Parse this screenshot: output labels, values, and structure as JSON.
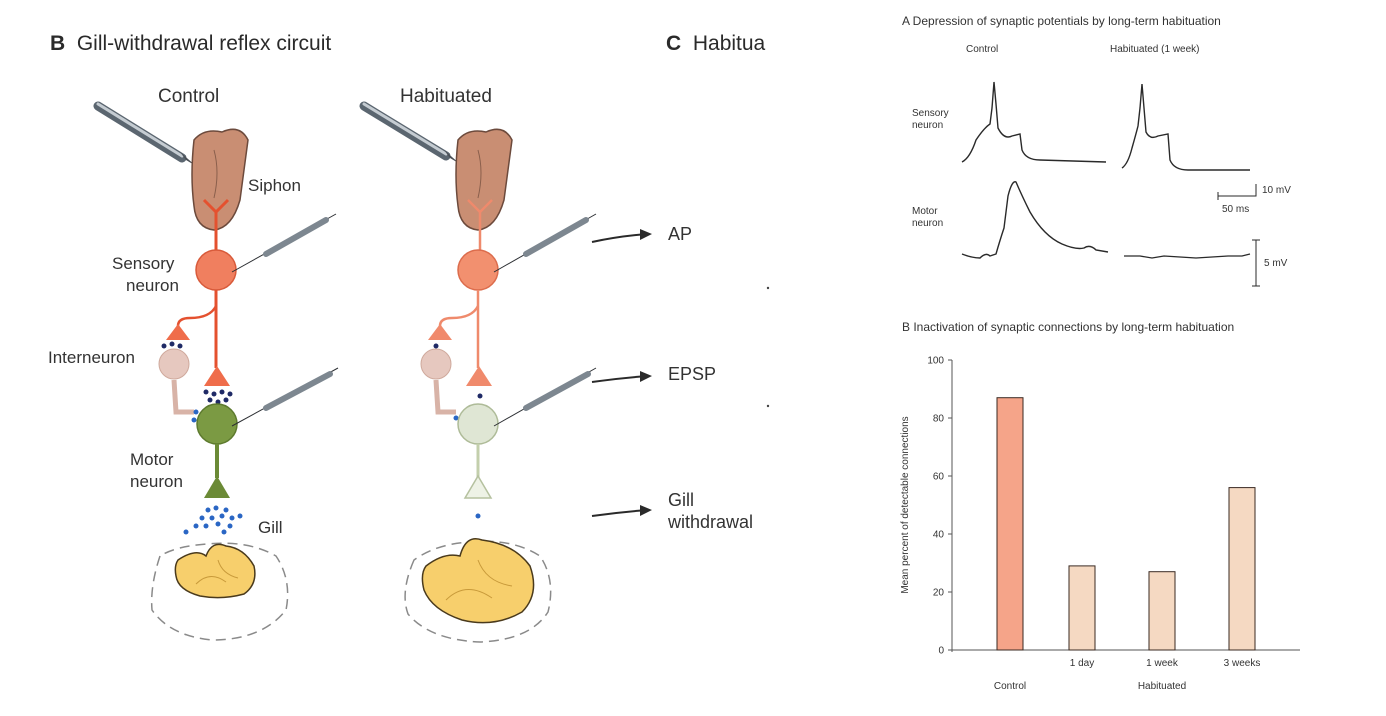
{
  "panel_b": {
    "letter": "B",
    "title": "Gill-withdrawal reflex circuit",
    "control_label": "Control",
    "habituated_label": "Habituated",
    "siphon_label": "Siphon",
    "sensory_label_1": "Sensory",
    "sensory_label_2": "neuron",
    "interneuron_label": "Interneuron",
    "motor_label_1": "Motor",
    "motor_label_2": "neuron",
    "gill_label": "Gill"
  },
  "panel_c": {
    "letter": "C",
    "title": "Habitua",
    "ap_label": "AP",
    "epsp_label": "EPSP",
    "gill_label_1": "Gill",
    "gill_label_2": "withdrawal"
  },
  "panel_a": {
    "title": "A  Depression of synaptic potentials by long-term habituation",
    "control_label": "Control",
    "habituated_label": "Habituated (1 week)",
    "sensory_label_1": "Sensory",
    "sensory_label_2": "neuron",
    "motor_label_1": "Motor",
    "motor_label_2": "neuron",
    "scale_10mv": "10 mV",
    "scale_50ms": "50 ms",
    "scale_5mv": "5 mV"
  },
  "chart_data": {
    "type": "bar",
    "title": "B  Inactivation of synaptic connections by long-term habituation",
    "ylabel": "Mean percent of detectable connections",
    "ylim": [
      0,
      100
    ],
    "yticks": [
      0,
      20,
      40,
      60,
      80,
      100
    ],
    "categories": [
      "Control",
      "1 day",
      "1 week",
      "3 weeks"
    ],
    "values": [
      87,
      29,
      27,
      56
    ],
    "group_label": "Habituated",
    "colors": [
      "#f5a489",
      "#f5d9c2",
      "#f5d9c2",
      "#f5d9c2"
    ]
  }
}
